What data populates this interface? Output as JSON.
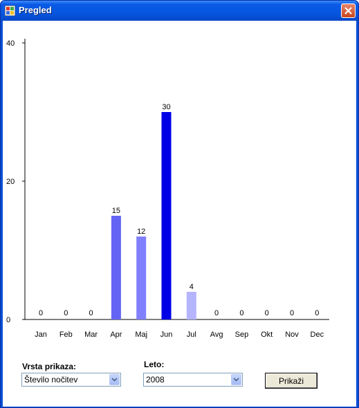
{
  "window": {
    "title": "Pregled"
  },
  "chart_data": {
    "type": "bar",
    "title": "",
    "xlabel": "",
    "ylabel": "",
    "categories": [
      "Jan",
      "Feb",
      "Mar",
      "Apr",
      "Maj",
      "Jun",
      "Jul",
      "Avg",
      "Sep",
      "Okt",
      "Nov",
      "Dec"
    ],
    "values": [
      0,
      0,
      0,
      15,
      12,
      30,
      4,
      0,
      0,
      0,
      0,
      0
    ],
    "data_labels": [
      "0",
      "0",
      "0",
      "15",
      "12",
      "30",
      "4",
      "0",
      "0",
      "0",
      "0",
      "0"
    ],
    "bar_colors": [
      "#8080ff",
      "#8080ff",
      "#8080ff",
      "#6464f4",
      "#8080ff",
      "#0000e6",
      "#b4b4ff",
      "#8080ff",
      "#8080ff",
      "#8080ff",
      "#8080ff",
      "#8080ff"
    ],
    "ylim": [
      0,
      40
    ],
    "yticks": [
      0,
      20,
      40
    ],
    "ytick_labels": [
      "0",
      "20",
      "40"
    ],
    "grid": false,
    "legend": "none"
  },
  "controls": {
    "vrsta_label": "Vrsta prikaza:",
    "vrsta_value": "Število nočitev",
    "leto_label": "Leto:",
    "leto_value": "2008",
    "show_button": "Prikaži"
  },
  "colors": {
    "titlebar": "#0a4fd6",
    "close_button": "#d7542f",
    "axis": "#000000"
  }
}
